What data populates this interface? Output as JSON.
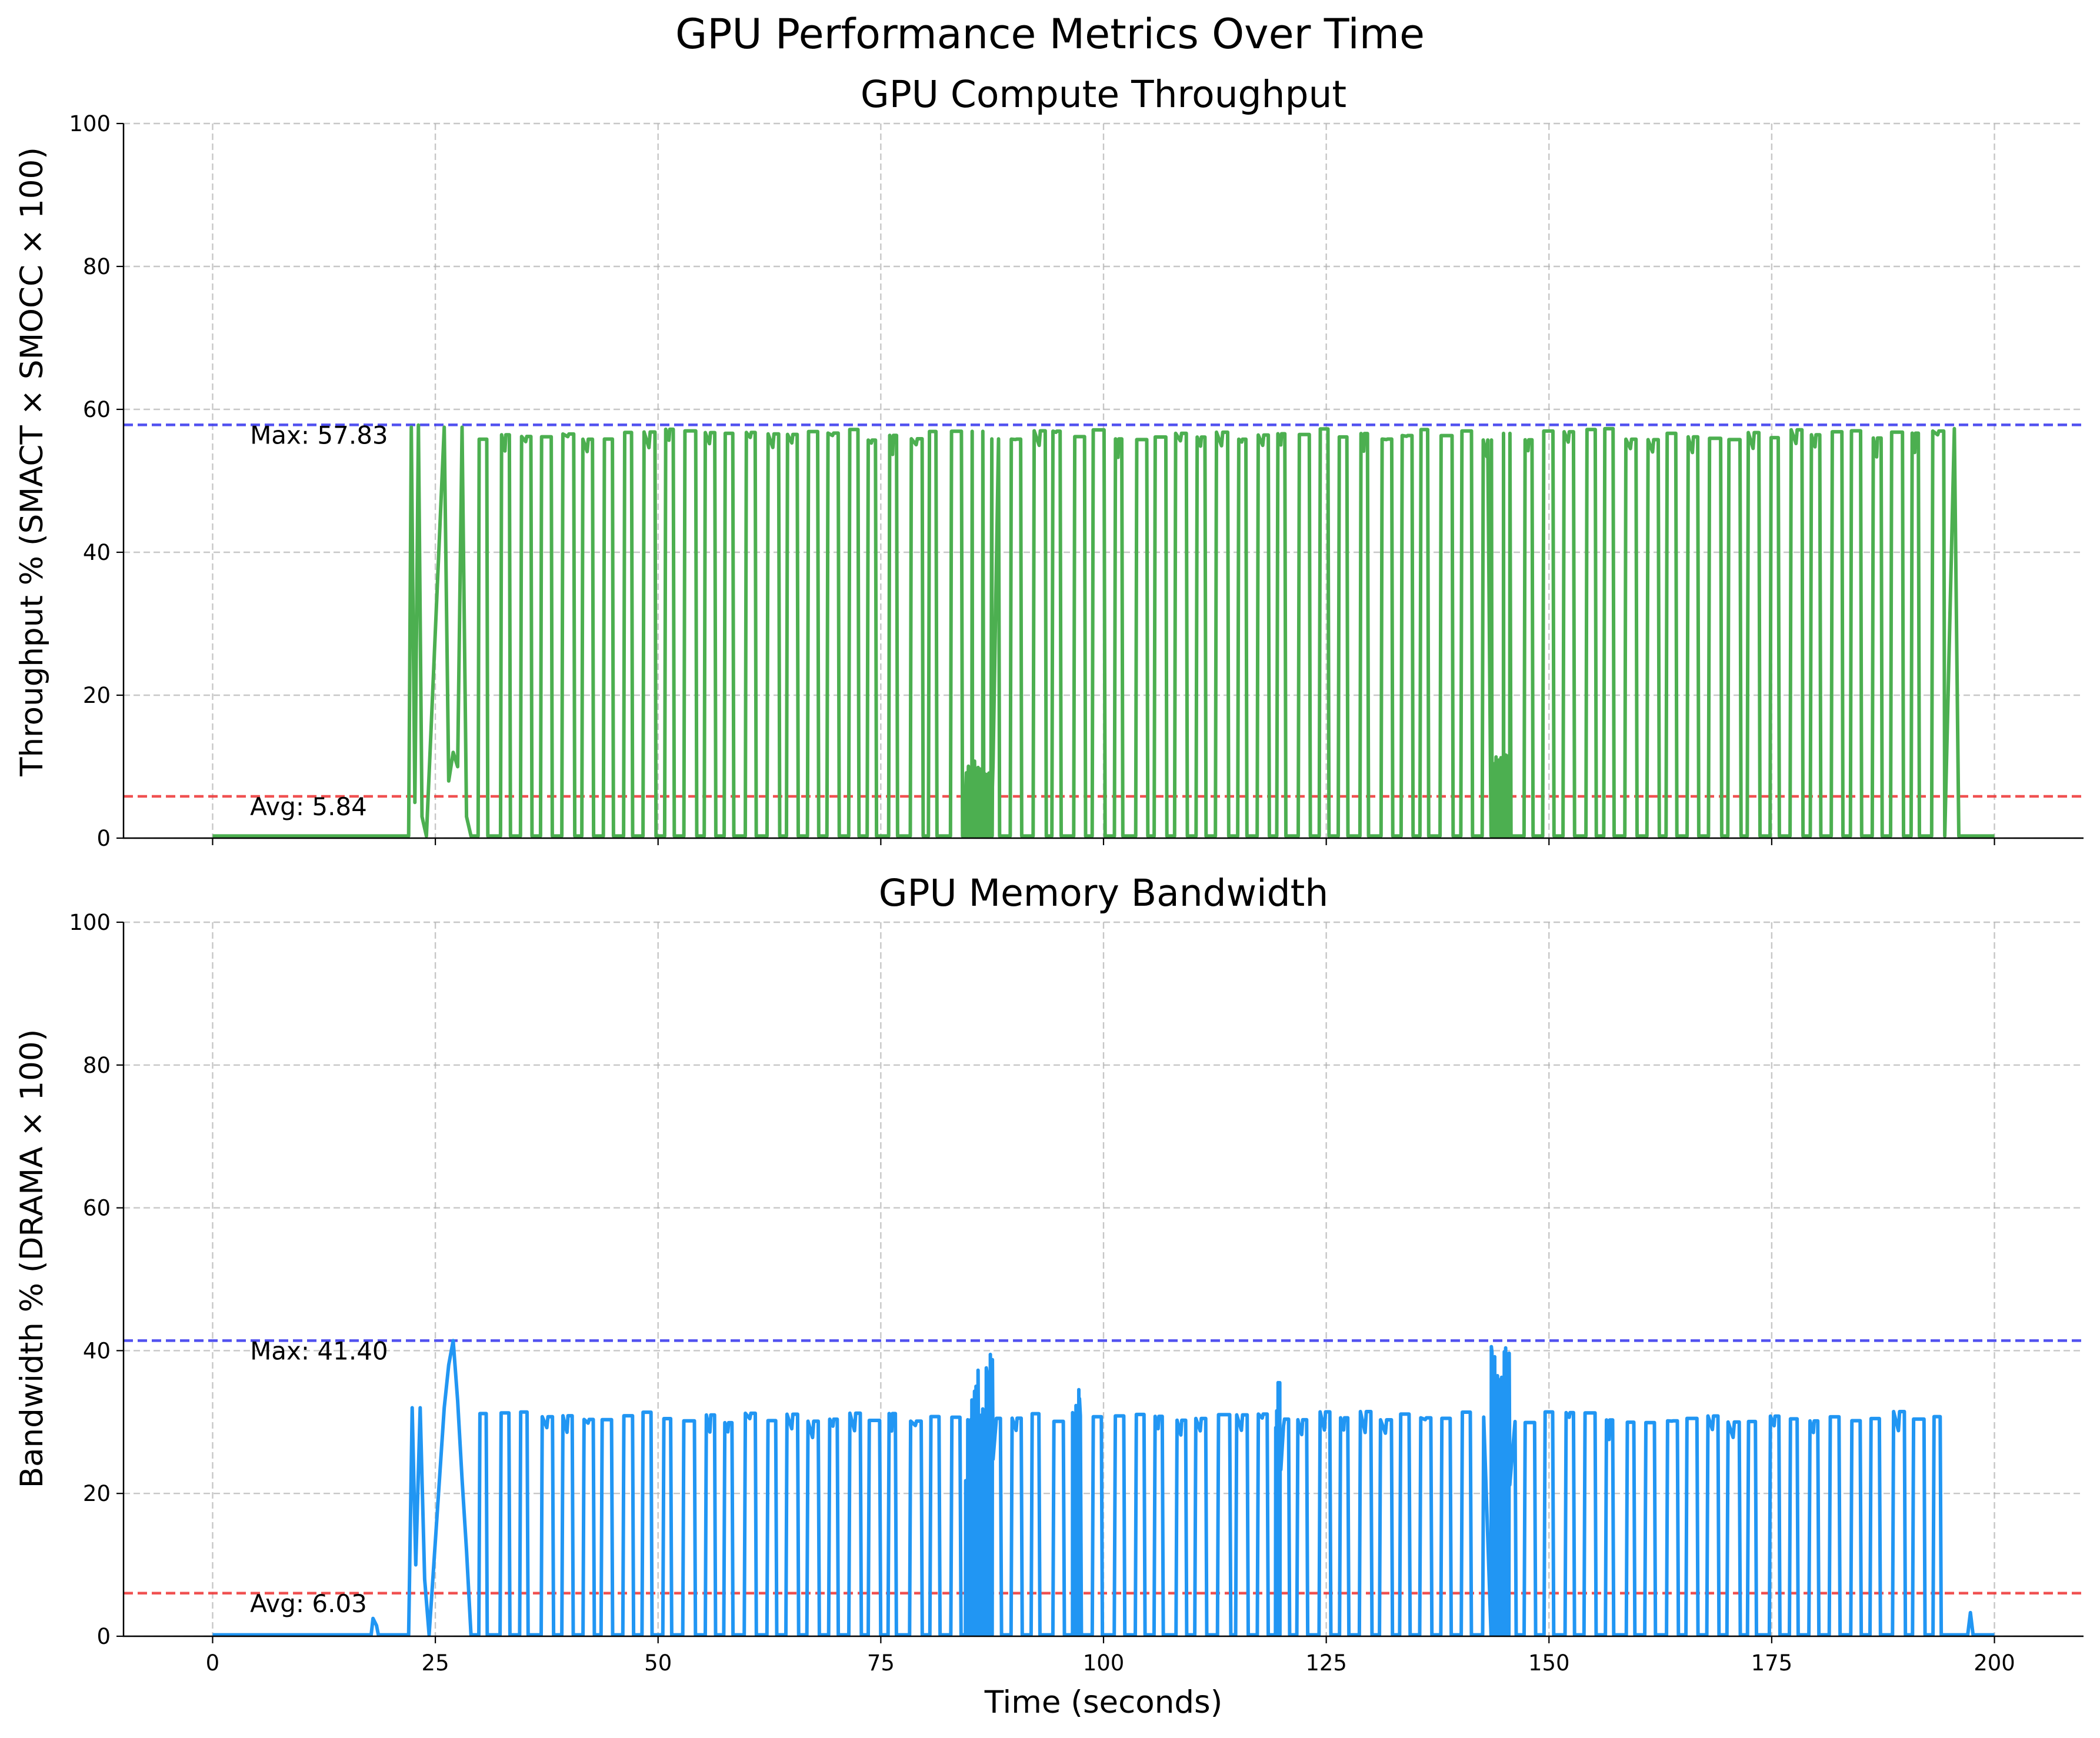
{
  "figure": {
    "title": "GPU Performance Metrics Over Time",
    "xlabel": "Time (seconds)"
  },
  "chart_data": [
    {
      "type": "line",
      "title": "GPU Compute Throughput",
      "xlabel": "",
      "ylabel": "Throughput % (SMACT × SMOCC × 100)",
      "xlim": [
        -10,
        210
      ],
      "ylim": [
        0,
        100
      ],
      "xticks": [
        0,
        25,
        50,
        75,
        100,
        125,
        150,
        175,
        200
      ],
      "xtick_labels_visible": false,
      "yticks": [
        0,
        20,
        40,
        60,
        80,
        100
      ],
      "grid": true,
      "series": [
        {
          "color": "#4caf50",
          "x": [
            0,
            22.0,
            22.3,
            22.7,
            23.1,
            23.5,
            24.0,
            26.0,
            26.5,
            27.0,
            27.5,
            28.0,
            28.5,
            29.0,
            195.5,
            196.0,
            200
          ],
          "y": [
            0.3,
            0.3,
            57.5,
            5,
            57.8,
            3,
            0.3,
            57.5,
            8,
            12,
            10,
            57.5,
            3,
            0.3,
            57.3,
            0.3,
            0.3
          ],
          "pulse_region": {
            "start": 29.8,
            "end": 195.2,
            "count": 72,
            "peak": 57.3,
            "base": 0.3
          },
          "minor_bursts": [
            {
              "x_range": [
                84.5,
                87.5
              ],
              "y": [
                6,
                11
              ]
            },
            {
              "x_range": [
                143.5,
                145.5
              ],
              "y": [
                4,
                12
              ]
            }
          ]
        }
      ],
      "reference_lines": [
        {
          "name": "Max",
          "y": 57.83,
          "color": "#3333ee",
          "label": "Max: 57.83"
        },
        {
          "name": "Avg",
          "y": 5.84,
          "color": "#ee3333",
          "label": "Avg: 5.84"
        }
      ]
    },
    {
      "type": "line",
      "title": "GPU Memory Bandwidth",
      "xlabel": "Time (seconds)",
      "ylabel": "Bandwidth % (DRAMA × 100)",
      "xlim": [
        -10,
        210
      ],
      "ylim": [
        0,
        100
      ],
      "xticks": [
        0,
        25,
        50,
        75,
        100,
        125,
        150,
        175,
        200
      ],
      "xtick_labels": [
        "0",
        "25",
        "50",
        "75",
        "100",
        "125",
        "150",
        "175",
        "200"
      ],
      "yticks": [
        0,
        20,
        40,
        60,
        80,
        100
      ],
      "grid": true,
      "series": [
        {
          "color": "#2196f3",
          "x": [
            0,
            17.8,
            18.0,
            18.4,
            18.6,
            22.0,
            22.4,
            22.8,
            23.3,
            23.8,
            24.3,
            26.0,
            26.5,
            27.0,
            27.5,
            28.0,
            28.5,
            29.0,
            197.0,
            197.3,
            197.6,
            200
          ],
          "y": [
            0.2,
            0.2,
            2.5,
            1.5,
            0.2,
            0.2,
            32,
            10,
            32,
            8,
            0.2,
            32,
            38,
            41.4,
            33,
            22,
            12,
            0.2,
            0.2,
            3.3,
            0.2,
            0.2
          ],
          "pulse_region": {
            "start": 29.8,
            "end": 195.2,
            "count": 72,
            "peak": 31.5,
            "base": 0.2
          },
          "bursts": [
            {
              "x_range": [
                84.5,
                87.5
              ],
              "y": [
                20,
                40
              ]
            },
            {
              "x_range": [
                143.5,
                145.5
              ],
              "y": [
                20,
                41.4
              ]
            },
            {
              "x_range": [
                96.5,
                97.2
              ],
              "y": [
                20,
                35
              ]
            },
            {
              "x_range": [
                119.3,
                119.8
              ],
              "y": [
                20,
                36.5
              ]
            }
          ]
        }
      ],
      "reference_lines": [
        {
          "name": "Max",
          "y": 41.4,
          "color": "#3333ee",
          "label": "Max: 41.40"
        },
        {
          "name": "Avg",
          "y": 6.03,
          "color": "#ee3333",
          "label": "Avg: 6.03"
        }
      ]
    }
  ]
}
